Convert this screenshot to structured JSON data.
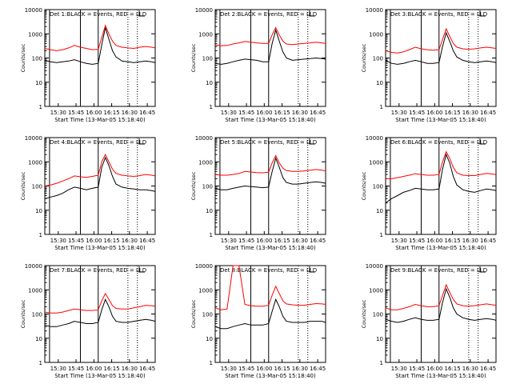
{
  "figure": {
    "xlabel": "Start Time (13-Mar-05 15:18:40)",
    "ylabel": "Counts/sec",
    "ytick_labels": [
      "1",
      "10",
      "100",
      "1000",
      "10000"
    ],
    "xtick_labels": [
      "15:30",
      "15:45",
      "16:00",
      "16:15",
      "16:30",
      "16:45"
    ],
    "colors": {
      "black_series": "#000000",
      "red_series": "#ff0000",
      "background": "#ffffff"
    }
  },
  "chart_data": [
    {
      "type": "line",
      "title": "Det 1:BLACK = Events, RED = LLD",
      "x_unit": "minutes after 15:18:40",
      "y_scale": "log",
      "ylim": [
        1,
        10000
      ],
      "xlim": [
        0,
        93
      ],
      "x": [
        0,
        5,
        10,
        15,
        20,
        25,
        30,
        35,
        40,
        45,
        48,
        51,
        54,
        57,
        60,
        65,
        70,
        75,
        80,
        85,
        90,
        93
      ],
      "series": [
        {
          "values": [
            80,
            70,
            65,
            70,
            75,
            85,
            70,
            60,
            55,
            60,
            350,
            1800,
            600,
            200,
            110,
            75,
            70,
            65,
            70,
            75,
            70,
            65
          ]
        },
        {
          "values": [
            250,
            220,
            200,
            220,
            260,
            330,
            280,
            250,
            220,
            230,
            700,
            2200,
            1000,
            500,
            330,
            280,
            260,
            250,
            280,
            300,
            280,
            260
          ]
        }
      ],
      "vlines_solid": [
        4,
        30,
        45
      ],
      "vlines_dotted": [
        70,
        78
      ]
    },
    {
      "type": "line",
      "title": "Det 2:BLACK = Events, RED = LLD",
      "x_unit": "minutes after 15:18:40",
      "y_scale": "log",
      "ylim": [
        1,
        10000
      ],
      "xlim": [
        0,
        93
      ],
      "x": [
        0,
        5,
        10,
        15,
        20,
        25,
        30,
        35,
        40,
        45,
        48,
        51,
        54,
        57,
        60,
        65,
        70,
        75,
        80,
        85,
        90,
        93
      ],
      "series": [
        {
          "values": [
            60,
            55,
            60,
            70,
            80,
            90,
            85,
            80,
            70,
            70,
            400,
            1400,
            500,
            180,
            100,
            80,
            85,
            90,
            95,
            100,
            95,
            90
          ]
        },
        {
          "values": [
            350,
            320,
            330,
            380,
            420,
            480,
            450,
            420,
            400,
            400,
            900,
            1800,
            900,
            500,
            380,
            360,
            380,
            400,
            420,
            450,
            420,
            400
          ]
        }
      ],
      "vlines_solid": [
        4,
        30,
        45
      ],
      "vlines_dotted": [
        70,
        78
      ]
    },
    {
      "type": "line",
      "title": "Det 3:BLACK = Events, RED = LLD",
      "x_unit": "minutes after 15:18:40",
      "y_scale": "log",
      "ylim": [
        1,
        10000
      ],
      "xlim": [
        0,
        93
      ],
      "x": [
        0,
        5,
        10,
        15,
        20,
        25,
        30,
        35,
        40,
        45,
        48,
        51,
        54,
        57,
        60,
        65,
        70,
        75,
        80,
        85,
        90,
        93
      ],
      "series": [
        {
          "values": [
            80,
            60,
            55,
            60,
            70,
            80,
            70,
            60,
            60,
            65,
            300,
            1100,
            500,
            200,
            110,
            80,
            70,
            65,
            70,
            75,
            70,
            65
          ]
        },
        {
          "values": [
            200,
            170,
            160,
            180,
            220,
            280,
            240,
            220,
            210,
            220,
            600,
            1600,
            800,
            400,
            280,
            240,
            230,
            240,
            260,
            280,
            260,
            250
          ]
        }
      ],
      "vlines_solid": [
        4,
        30,
        45
      ],
      "vlines_dotted": [
        70,
        78
      ]
    },
    {
      "type": "line",
      "title": "Det 4:BLACK = Events, RED = LLD",
      "x_unit": "minutes after 15:18:40",
      "y_scale": "log",
      "ylim": [
        1,
        10000
      ],
      "xlim": [
        0,
        93
      ],
      "x": [
        0,
        5,
        10,
        15,
        20,
        25,
        30,
        35,
        40,
        45,
        48,
        51,
        54,
        57,
        60,
        65,
        70,
        75,
        80,
        85,
        90,
        93
      ],
      "series": [
        {
          "values": [
            30,
            35,
            40,
            50,
            70,
            90,
            80,
            70,
            80,
            90,
            600,
            1500,
            700,
            250,
            120,
            90,
            80,
            75,
            70,
            70,
            65,
            60
          ]
        },
        {
          "values": [
            100,
            110,
            130,
            160,
            200,
            260,
            240,
            230,
            250,
            280,
            1000,
            2000,
            1000,
            500,
            330,
            280,
            260,
            250,
            270,
            300,
            280,
            260
          ]
        }
      ],
      "vlines_solid": [
        4,
        30,
        45
      ],
      "vlines_dotted": [
        70,
        78
      ]
    },
    {
      "type": "line",
      "title": "Det 5:BLACK = Events, RED = LLD",
      "x_unit": "minutes after 15:18:40",
      "y_scale": "log",
      "ylim": [
        1,
        10000
      ],
      "xlim": [
        0,
        93
      ],
      "x": [
        0,
        5,
        10,
        15,
        20,
        25,
        30,
        35,
        40,
        45,
        48,
        51,
        54,
        57,
        60,
        65,
        70,
        75,
        80,
        85,
        90,
        93
      ],
      "series": [
        {
          "values": [
            80,
            70,
            70,
            80,
            90,
            100,
            95,
            90,
            85,
            90,
            400,
            1400,
            600,
            220,
            140,
            120,
            120,
            130,
            140,
            150,
            140,
            130
          ]
        },
        {
          "values": [
            300,
            280,
            280,
            300,
            330,
            400,
            380,
            360,
            350,
            370,
            900,
            1800,
            900,
            550,
            430,
            400,
            400,
            420,
            450,
            480,
            450,
            420
          ]
        }
      ],
      "vlines_solid": [
        4,
        30,
        45
      ],
      "vlines_dotted": [
        70,
        78
      ]
    },
    {
      "type": "line",
      "title": "Det 6:BLACK = Events, RED = LLD",
      "x_unit": "minutes after 15:18:40",
      "y_scale": "log",
      "ylim": [
        1,
        10000
      ],
      "xlim": [
        0,
        93
      ],
      "x": [
        0,
        5,
        10,
        15,
        20,
        25,
        30,
        35,
        40,
        45,
        48,
        51,
        54,
        57,
        60,
        65,
        70,
        75,
        80,
        85,
        90,
        93
      ],
      "series": [
        {
          "values": [
            20,
            30,
            40,
            55,
            65,
            80,
            75,
            70,
            70,
            75,
            500,
            2000,
            900,
            250,
            110,
            70,
            60,
            55,
            65,
            75,
            70,
            65
          ]
        },
        {
          "values": [
            200,
            200,
            220,
            250,
            280,
            320,
            300,
            280,
            280,
            300,
            1000,
            2600,
            1400,
            600,
            350,
            280,
            270,
            270,
            300,
            330,
            310,
            300
          ]
        }
      ],
      "vlines_solid": [
        4,
        30,
        45
      ],
      "vlines_dotted": [
        70,
        78
      ]
    },
    {
      "type": "line",
      "title": "Det 7:BLACK = Events, RED = LLD",
      "x_unit": "minutes after 15:18:40",
      "y_scale": "log",
      "ylim": [
        1,
        10000
      ],
      "xlim": [
        0,
        93
      ],
      "x": [
        0,
        5,
        10,
        15,
        20,
        25,
        30,
        35,
        40,
        45,
        48,
        51,
        54,
        57,
        60,
        65,
        70,
        75,
        80,
        85,
        90,
        93
      ],
      "series": [
        {
          "values": [
            35,
            30,
            30,
            35,
            40,
            50,
            45,
            40,
            40,
            45,
            150,
            400,
            200,
            80,
            50,
            45,
            45,
            50,
            55,
            60,
            55,
            50
          ]
        },
        {
          "values": [
            120,
            110,
            110,
            120,
            140,
            160,
            150,
            140,
            140,
            150,
            350,
            700,
            400,
            220,
            170,
            160,
            160,
            180,
            200,
            230,
            220,
            210
          ]
        }
      ],
      "vlines_solid": [
        4,
        30,
        45
      ],
      "vlines_dotted": [
        70,
        78
      ]
    },
    {
      "type": "line",
      "title": "Det 8:BLACK = Events, RED = LLD",
      "x_unit": "minutes after 15:18:40",
      "y_scale": "log",
      "ylim": [
        1,
        10000
      ],
      "xlim": [
        0,
        93
      ],
      "x": [
        0,
        5,
        10,
        15,
        20,
        25,
        30,
        35,
        40,
        45,
        48,
        51,
        54,
        57,
        60,
        65,
        70,
        75,
        80,
        85,
        90,
        93
      ],
      "series": [
        {
          "values": [
            30,
            25,
            25,
            30,
            35,
            40,
            35,
            35,
            35,
            40,
            130,
            400,
            200,
            80,
            50,
            45,
            45,
            45,
            50,
            50,
            50,
            45
          ]
        },
        {
          "values": [
            180,
            150,
            160,
            10000,
            10000,
            250,
            220,
            210,
            210,
            230,
            600,
            1400,
            700,
            350,
            260,
            240,
            230,
            230,
            250,
            270,
            260,
            250
          ]
        }
      ],
      "vlines_solid": [
        4,
        30,
        45
      ],
      "vlines_dotted": [
        70,
        78
      ]
    },
    {
      "type": "line",
      "title": "Det 9:BLACK = Events, RED = LLD",
      "x_unit": "minutes after 15:18:40",
      "y_scale": "log",
      "ylim": [
        1,
        10000
      ],
      "xlim": [
        0,
        93
      ],
      "x": [
        0,
        5,
        10,
        15,
        20,
        25,
        30,
        35,
        40,
        45,
        48,
        51,
        54,
        57,
        60,
        65,
        70,
        75,
        80,
        85,
        90,
        93
      ],
      "series": [
        {
          "values": [
            60,
            50,
            45,
            50,
            60,
            70,
            60,
            55,
            55,
            60,
            300,
            1100,
            500,
            180,
            100,
            70,
            60,
            55,
            60,
            65,
            60,
            55
          ]
        },
        {
          "values": [
            180,
            150,
            150,
            170,
            200,
            250,
            220,
            200,
            200,
            220,
            600,
            1600,
            800,
            400,
            260,
            220,
            210,
            220,
            240,
            260,
            240,
            230
          ]
        }
      ],
      "vlines_solid": [
        4,
        30,
        45
      ],
      "vlines_dotted": [
        70,
        78
      ]
    }
  ]
}
